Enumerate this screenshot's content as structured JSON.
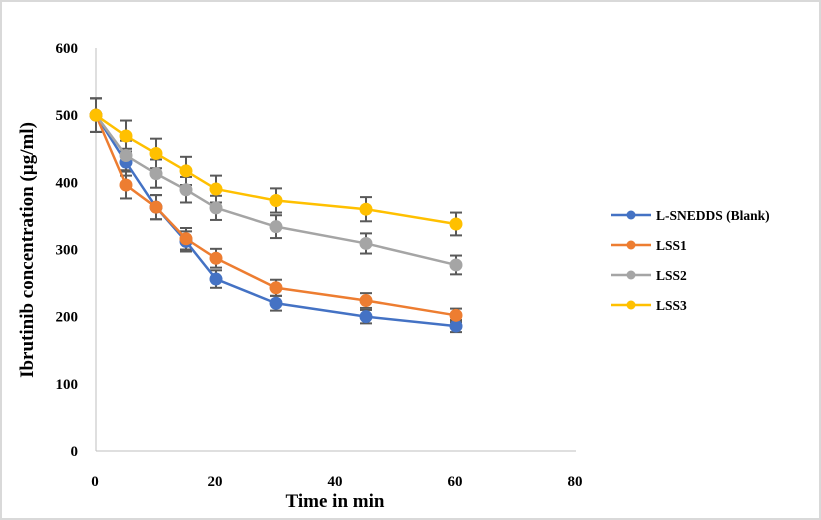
{
  "chart_data": {
    "type": "line",
    "title": "",
    "xlabel": "Time in min",
    "ylabel": "Ibrutinib concentration (µg/ml)",
    "xlim": [
      0,
      80
    ],
    "ylim": [
      0,
      600
    ],
    "xticks": [
      0,
      20,
      40,
      60,
      80
    ],
    "yticks": [
      0,
      100,
      200,
      300,
      400,
      500,
      600
    ],
    "grid": false,
    "legend_position": "right",
    "x": [
      0,
      5,
      10,
      15,
      20,
      30,
      45,
      60
    ],
    "series": [
      {
        "name": "L-SNEDDS (Blank)",
        "color": "#4472c4",
        "values": [
          500,
          430,
          363,
          312,
          256,
          220,
          200,
          186
        ],
        "errors": [
          25,
          20,
          18,
          15,
          13,
          11,
          10,
          9
        ]
      },
      {
        "name": "LSS1",
        "color": "#ed7d31",
        "values": [
          500,
          396,
          363,
          316,
          287,
          243,
          224,
          202
        ],
        "errors": [
          25,
          20,
          18,
          16,
          14,
          12,
          11,
          10
        ]
      },
      {
        "name": "LSS2",
        "color": "#a5a5a5",
        "values": [
          500,
          440,
          413,
          389,
          362,
          334,
          309,
          277
        ],
        "errors": [
          25,
          22,
          21,
          19,
          18,
          17,
          15,
          14
        ]
      },
      {
        "name": "LSS3",
        "color": "#ffc000",
        "values": [
          500,
          469,
          443,
          417,
          390,
          373,
          360,
          338
        ],
        "errors": [
          25,
          23,
          22,
          21,
          20,
          18,
          18,
          17
        ]
      }
    ],
    "errorbar_color": "#595959",
    "axis_color": "#bfbfbf"
  }
}
